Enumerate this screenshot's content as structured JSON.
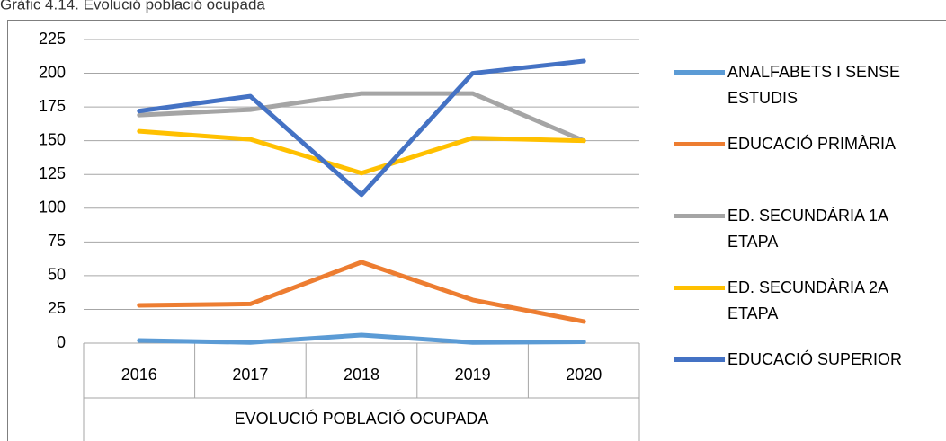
{
  "chart_data": {
    "type": "line",
    "title": "Gràfic 4.14. Evolució població ocupada",
    "x_label": "EVOLUCIÓ POBLACIÓ OCUPADA",
    "categories": [
      "2016",
      "2017",
      "2018",
      "2019",
      "2020"
    ],
    "series": [
      {
        "name": "ANALFABETS I SENSE ESTUDIS",
        "color": "#5b9bd5",
        "values": [
          2,
          0.5,
          6,
          0.5,
          1
        ]
      },
      {
        "name": "EDUCACIÓ PRIMÀRIA",
        "color": "#ed7d31",
        "values": [
          28,
          29,
          60,
          32,
          16
        ]
      },
      {
        "name": "ED. SECUNDÀRIA 1A ETAPA",
        "color": "#a5a5a5",
        "values": [
          169,
          173,
          185,
          185,
          150
        ]
      },
      {
        "name": "ED. SECUNDÀRIA 2A ETAPA",
        "color": "#ffc000",
        "values": [
          157,
          151,
          126,
          152,
          150
        ]
      },
      {
        "name": "EDUCACIÓ SUPERIOR",
        "color": "#4472c4",
        "values": [
          172,
          183,
          110,
          200,
          209
        ]
      }
    ],
    "ylim": [
      0,
      225
    ],
    "yticks": [
      0,
      25,
      50,
      75,
      100,
      125,
      150,
      175,
      200,
      225
    ],
    "grid": true,
    "legend": "right"
  }
}
